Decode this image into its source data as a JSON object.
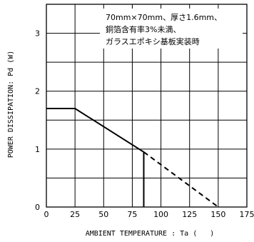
{
  "chart_data": {
    "type": "line",
    "xlabel": "AMBIENT TEMPERATURE : Ta (   )",
    "ylabel": "POWER DISSIPATION: Pd (W)",
    "x_ticks": [
      "0",
      "25",
      "50",
      "75",
      "100",
      "125",
      "150",
      "175"
    ],
    "y_ticks": [
      "0",
      "1",
      "2",
      "3"
    ],
    "xlim": [
      0,
      175
    ],
    "ylim": [
      0,
      3.5
    ],
    "grid": true,
    "annotation": [
      "70mm×70mm、厚さ1.6mm、",
      "銅箔含有率3%未満、",
      "ガラスエポキシ基板実装時"
    ],
    "series": [
      {
        "style": "solid",
        "x": [
          0,
          25,
          85
        ],
        "y": [
          1.7,
          1.7,
          0.95
        ]
      },
      {
        "style": "dashed",
        "x": [
          85,
          150
        ],
        "y": [
          0.95,
          0
        ]
      },
      {
        "style": "solid-vertical",
        "x": [
          85,
          85
        ],
        "y": [
          0.95,
          0
        ]
      }
    ]
  }
}
